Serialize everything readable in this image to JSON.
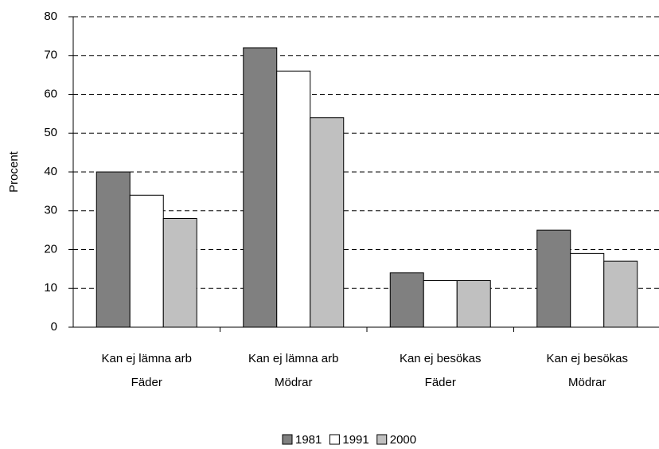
{
  "chart_data": {
    "type": "bar",
    "ylabel": "Procent",
    "categories": [
      [
        "Kan ej lämna arb",
        "Fäder"
      ],
      [
        "Kan ej lämna arb",
        "Mödrar"
      ],
      [
        "Kan ej besökas",
        "Fäder"
      ],
      [
        "Kan ej besökas",
        "Mödrar"
      ]
    ],
    "series": [
      {
        "name": "1981",
        "color": "#808080",
        "values": [
          40,
          72,
          14,
          25
        ]
      },
      {
        "name": "1991",
        "color": "#ffffff",
        "values": [
          34,
          66,
          12,
          19
        ]
      },
      {
        "name": "2000",
        "color": "#c0c0c0",
        "values": [
          28,
          54,
          12,
          17
        ]
      }
    ],
    "ylim": [
      0,
      80
    ],
    "yticks": [
      0,
      10,
      20,
      30,
      40,
      50,
      60,
      70,
      80
    ],
    "grid": true,
    "legend": "bottom"
  }
}
